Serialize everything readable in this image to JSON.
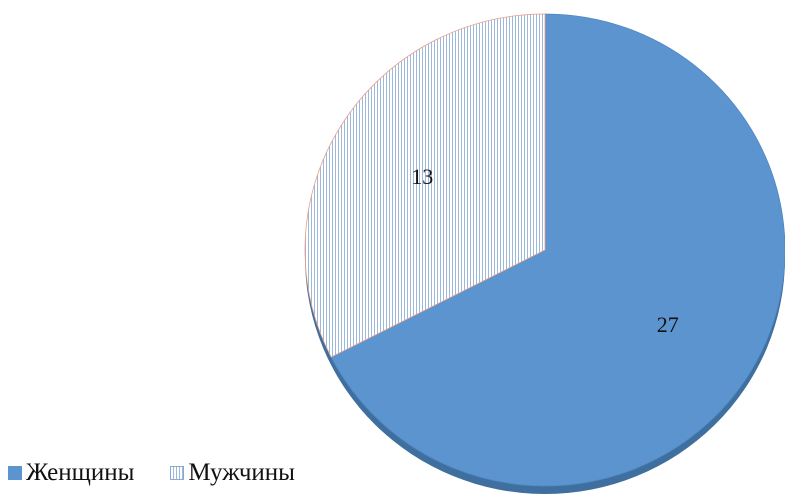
{
  "chart_data": {
    "type": "pie",
    "title": "",
    "series": [
      {
        "values": [
          27,
          13
        ],
        "categories": [
          "Женщины",
          "Мужчины"
        ]
      }
    ],
    "slices": [
      {
        "label": "Женщины",
        "value": 27,
        "fill": "solid",
        "color": "#5b94cf"
      },
      {
        "label": "Мужчины",
        "value": 13,
        "fill": "vertical-hatch",
        "color": "#9cb8da"
      }
    ],
    "data_labels": [
      "27",
      "13"
    ],
    "legend": {
      "placement": "bottom-left",
      "entries": [
        "Женщины",
        "Мужчины"
      ]
    },
    "start_angle": "12 o'clock",
    "direction": "clockwise",
    "style": "3d-tilted"
  }
}
